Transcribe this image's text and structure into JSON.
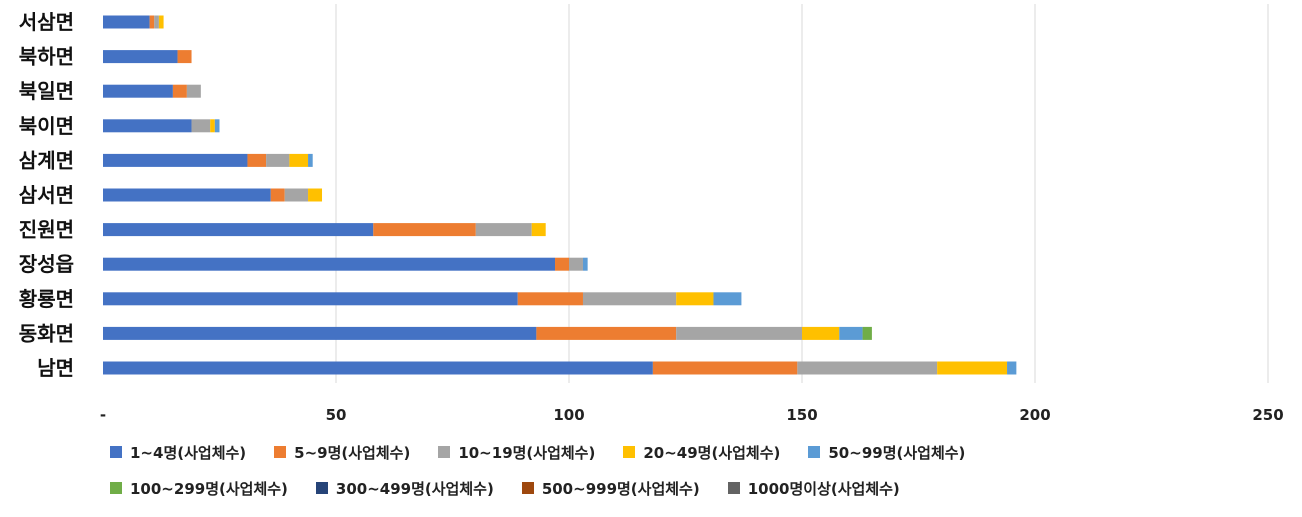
{
  "chart_data": {
    "type": "bar",
    "orientation": "horizontal",
    "stacked": true,
    "categories": [
      "서삼면",
      "북하면",
      "북일면",
      "북이면",
      "삼계면",
      "삼서면",
      "진원면",
      "장성읍",
      "황룡면",
      "동화면",
      "남면"
    ],
    "series": [
      {
        "name": "1~4명(사업체수)",
        "color": "#4472C4",
        "values": [
          10,
          16,
          15,
          19,
          31,
          36,
          58,
          97,
          89,
          93,
          118
        ]
      },
      {
        "name": "5~9명(사업체수)",
        "color": "#ED7D31",
        "values": [
          1,
          3,
          3,
          0,
          4,
          3,
          22,
          3,
          14,
          30,
          31
        ]
      },
      {
        "name": "10~19명(사업체수)",
        "color": "#A5A5A5",
        "values": [
          1,
          0,
          3,
          4,
          5,
          5,
          12,
          3,
          20,
          27,
          30
        ]
      },
      {
        "name": "20~49명(사업체수)",
        "color": "#FFC000",
        "values": [
          1,
          0,
          0,
          1,
          4,
          3,
          3,
          0,
          8,
          8,
          15
        ]
      },
      {
        "name": "50~99명(사업체수)",
        "color": "#5B9BD5",
        "values": [
          0,
          0,
          0,
          1,
          1,
          0,
          0,
          1,
          6,
          5,
          2
        ]
      },
      {
        "name": "100~299명(사업체수)",
        "color": "#70AD47",
        "values": [
          0,
          0,
          0,
          0,
          0,
          0,
          0,
          0,
          0,
          2,
          0
        ]
      },
      {
        "name": "300~499명(사업체수)",
        "color": "#264478",
        "values": [
          0,
          0,
          0,
          0,
          0,
          0,
          0,
          0,
          0,
          0,
          0
        ]
      },
      {
        "name": "500~999명(사업체수)",
        "color": "#9E480E",
        "values": [
          0,
          0,
          0,
          0,
          0,
          0,
          0,
          0,
          0,
          0,
          0
        ]
      },
      {
        "name": "1000명이상(사업체수)",
        "color": "#636363",
        "values": [
          0,
          0,
          0,
          0,
          0,
          0,
          0,
          0,
          0,
          0,
          0
        ]
      }
    ],
    "xlim": [
      0,
      250
    ],
    "xticks": [
      0,
      50,
      100,
      150,
      200,
      250
    ],
    "xtick_labels": [
      "-",
      "50",
      "100",
      "150",
      "200",
      "250"
    ],
    "grid": true,
    "legend_position": "bottom",
    "title": "",
    "xlabel": "",
    "ylabel": ""
  }
}
